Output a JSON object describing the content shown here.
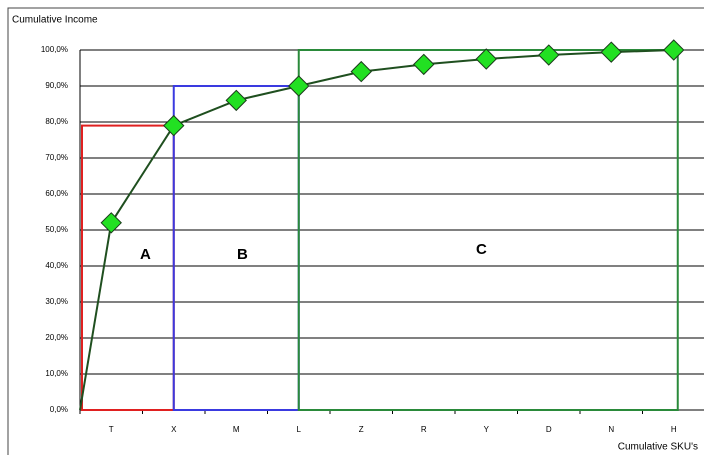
{
  "chart_data": {
    "type": "line",
    "y_title": "Cumulative Income",
    "x_title": "Cumulative SKU's",
    "categories": [
      null,
      "T",
      "X",
      "M",
      "L",
      "Z",
      "R",
      "Y",
      "D",
      "N",
      "H"
    ],
    "series": [
      {
        "name": "Cumulative Income",
        "color": "#1f4f1f",
        "marker_color": "#22e022",
        "values": [
          0,
          52,
          79,
          86,
          90,
          94,
          96,
          97.5,
          98.6,
          99.4,
          100
        ]
      }
    ],
    "classes": [
      {
        "label": "A",
        "color": "#e02020"
      },
      {
        "label": "B",
        "color": "#3a3ae0"
      },
      {
        "label": "C",
        "color": "#2a8a3a"
      }
    ],
    "ylim": [
      0,
      100
    ],
    "yticks": [
      {
        "value": 0,
        "label": "0,0%"
      },
      {
        "value": 10,
        "label": "10,0%"
      },
      {
        "value": 20,
        "label": "20,0%"
      },
      {
        "value": 30,
        "label": "30,0%"
      },
      {
        "value": 40,
        "label": "40,0%"
      },
      {
        "value": 50,
        "label": "50,0%"
      },
      {
        "value": 60,
        "label": "60,0%"
      },
      {
        "value": 70,
        "label": "70,0%"
      },
      {
        "value": 80,
        "label": "80,0%"
      },
      {
        "value": 90,
        "label": "90,0%"
      },
      {
        "value": 100,
        "label": "100,0%"
      }
    ],
    "grid": true
  }
}
